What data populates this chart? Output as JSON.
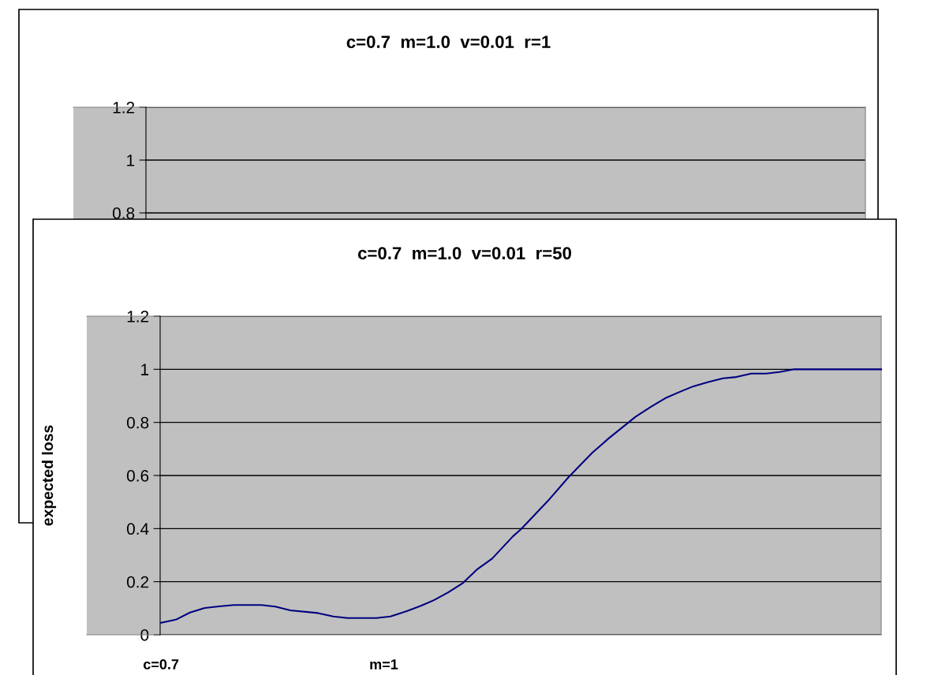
{
  "chart_data": [
    {
      "type": "other",
      "title": "c=0.7  m=1.0  v=0.01  r=1",
      "annotations": [
        "1.2",
        "1",
        "0.8"
      ]
    },
    {
      "type": "line",
      "title": "c=0.7  m=1.0  v=0.01  r=50",
      "ylabel": "expected loss",
      "xlim": [
        0.6,
        1.67
      ],
      "xticks": [
        {
          "value": 0.7,
          "label": "c=0.7"
        },
        {
          "value": 1,
          "label": "m=1"
        }
      ],
      "ylim": [
        0,
        1.2
      ],
      "yticks": [
        0,
        0.2,
        0.4,
        0.6,
        0.8,
        1,
        1.2
      ],
      "grid": "y",
      "marker": "none",
      "line_style": "solid",
      "series": [
        {
          "color": "#000080",
          "x": [
            0.7,
            0.72,
            0.739,
            0.759,
            0.778,
            0.798,
            0.835,
            0.854,
            0.874,
            0.911,
            0.932,
            0.951,
            0.99,
            1.009,
            1.031,
            1.05,
            1.068,
            1.087,
            1.107,
            1.126,
            1.146,
            1.174,
            1.185,
            1.221,
            1.249,
            1.281,
            1.303,
            1.339,
            1.359,
            1.379,
            1.397,
            1.417,
            1.437,
            1.457,
            1.475,
            1.495,
            1.515,
            1.533,
            1.553,
            1.67
          ],
          "values": [
            0.045,
            0.057,
            0.084,
            0.101,
            0.107,
            0.112,
            0.112,
            0.106,
            0.092,
            0.082,
            0.069,
            0.063,
            0.063,
            0.069,
            0.089,
            0.109,
            0.131,
            0.16,
            0.196,
            0.247,
            0.287,
            0.371,
            0.398,
            0.504,
            0.594,
            0.686,
            0.74,
            0.821,
            0.857,
            0.891,
            0.913,
            0.936,
            0.952,
            0.966,
            0.971,
            0.984,
            0.984,
            0.99,
            1.0,
            1.0
          ]
        }
      ]
    }
  ]
}
